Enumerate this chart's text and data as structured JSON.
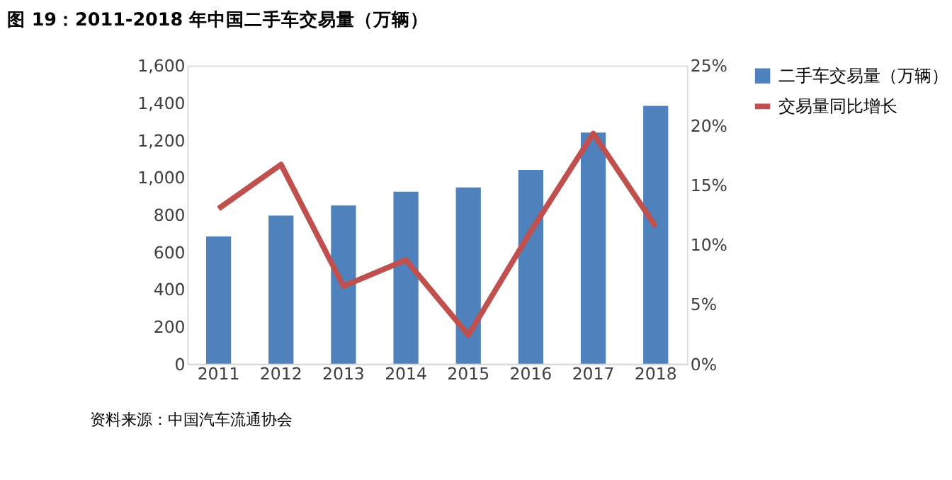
{
  "chart_data": {
    "type": "bar",
    "title": "图 19：2011-2018 年中国二手车交易量（万辆）",
    "categories": [
      "2011",
      "2012",
      "2013",
      "2014",
      "2015",
      "2016",
      "2017",
      "2018"
    ],
    "series": [
      {
        "name": "二手车交易量（万辆）",
        "color": "#4f81bd",
        "values": [
          683,
          795,
          849,
          923,
          946,
          1040,
          1240,
          1384
        ]
      },
      {
        "name": "交易量同比增长",
        "color": "#c0504d",
        "type": "line",
        "axis": "y2",
        "values": [
          13.0,
          16.7,
          6.5,
          8.7,
          2.4,
          11.1,
          19.3,
          11.5
        ]
      }
    ],
    "ylim": [
      0,
      1600
    ],
    "yticks": [
      0,
      200,
      400,
      600,
      800,
      {
        "value": 1000,
        "label": "1,000"
      },
      {
        "value": 1200,
        "label": "1,200"
      },
      {
        "value": 1400,
        "label": "1,400"
      },
      {
        "value": 1600,
        "label": "1,600"
      }
    ],
    "y2lim": [
      0,
      25
    ],
    "y2ticks": [
      {
        "value": 0,
        "label": "0%"
      },
      {
        "value": 5,
        "label": "5%"
      },
      {
        "value": 10,
        "label": "10%"
      },
      {
        "value": 15,
        "label": "15%"
      },
      {
        "value": 20,
        "label": "20%"
      },
      {
        "value": 25,
        "label": "25%"
      }
    ],
    "grid": false,
    "legend": "right",
    "marker": "none",
    "line_style": "solid",
    "annotations": [
      "资料来源：中国汽车流通协会"
    ]
  }
}
